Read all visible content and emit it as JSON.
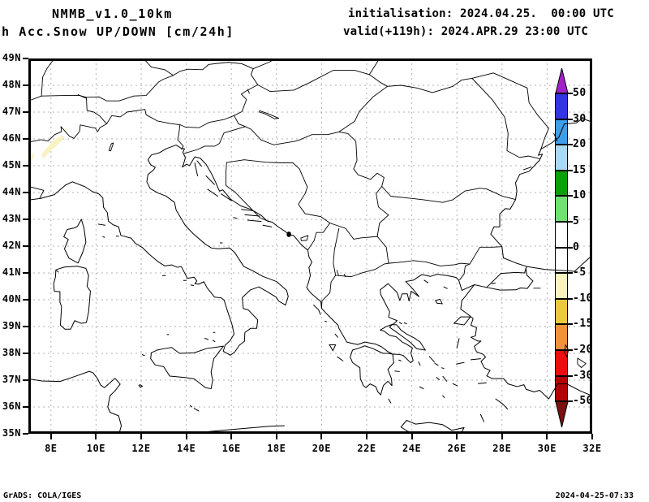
{
  "header": {
    "model": "NMMB_v1.0_10km",
    "product": "h Acc.Snow UP/DOWN [cm/24h]",
    "init_line": "initialisation: 2024.04.25.  00:00 UTC",
    "valid_line": "valid(+119h): 2024.APR.29 23:00 UTC"
  },
  "map": {
    "lat_labels": [
      "49N",
      "48N",
      "47N",
      "46N",
      "45N",
      "44N",
      "43N",
      "42N",
      "41N",
      "40N",
      "39N",
      "38N",
      "37N",
      "36N",
      "35N"
    ],
    "lon_labels": [
      "8E",
      "10E",
      "12E",
      "14E",
      "16E",
      "18E",
      "20E",
      "22E",
      "24E",
      "26E",
      "28E",
      "30E",
      "32E"
    ],
    "lat_range_deg": [
      35,
      49
    ],
    "lon_range_deg": [
      7,
      32
    ],
    "grid_color": "#b2b2b2",
    "coast_color": "#000000",
    "snow_patch_color": "#f8f2c2"
  },
  "colorbar": {
    "levels": [
      "50",
      "30",
      "20",
      "15",
      "10",
      "5",
      "0",
      "-5",
      "-10",
      "-15",
      "-20",
      "-30",
      "-50"
    ],
    "segment_colors": [
      "#3434e0",
      "#3f9ee8",
      "#a9d9f5",
      "#0aa00a",
      "#6fe26f",
      "#ffffff",
      "#ffffff",
      "#faf3be",
      "#edc83e",
      "#f0913c",
      "#ee0c0c",
      "#b20404"
    ],
    "arrow_up_color": "#a121c8",
    "arrow_down_color": "#7a1010"
  },
  "footer": {
    "left": "GrADS: COLA/IGES",
    "right": "2024-04-25-07:33"
  }
}
